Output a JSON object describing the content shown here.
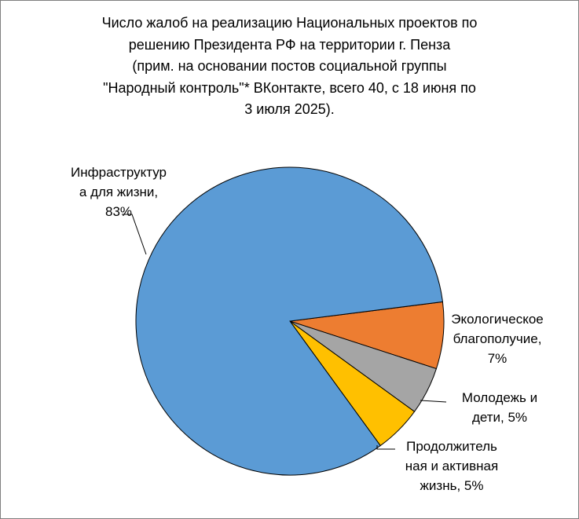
{
  "chart_data": {
    "type": "pie",
    "title_lines": [
      "Число жалоб на реализацию Национальных проектов по",
      "решению Президента РФ на территории г. Пенза",
      "(прим. на основании постов социальной группы",
      "\"Народный контроль\"* ВКонтакте, всего 40, с 18 июня по",
      "3 июля 2025)."
    ],
    "slices": [
      {
        "name": "Инфраструктура для жизни",
        "value": 83,
        "color": "#5b9bd5",
        "label_lines": [
          "Инфраструктур",
          "а для жизни,",
          "83%"
        ]
      },
      {
        "name": "Экологическое благополучие",
        "value": 7,
        "color": "#ed7d31",
        "label_lines": [
          "Экологическое",
          "благополучие,",
          "7%"
        ]
      },
      {
        "name": "Молодежь и дети",
        "value": 5,
        "color": "#a5a5a5",
        "label_lines": [
          "Молодежь и",
          "дети,  5%"
        ]
      },
      {
        "name": "Продолжительная и активная жизнь",
        "value": 5,
        "color": "#ffc000",
        "label_lines": [
          "Продолжитель",
          "ная и активная",
          "жизнь,  5%"
        ]
      }
    ],
    "legend": "none"
  }
}
